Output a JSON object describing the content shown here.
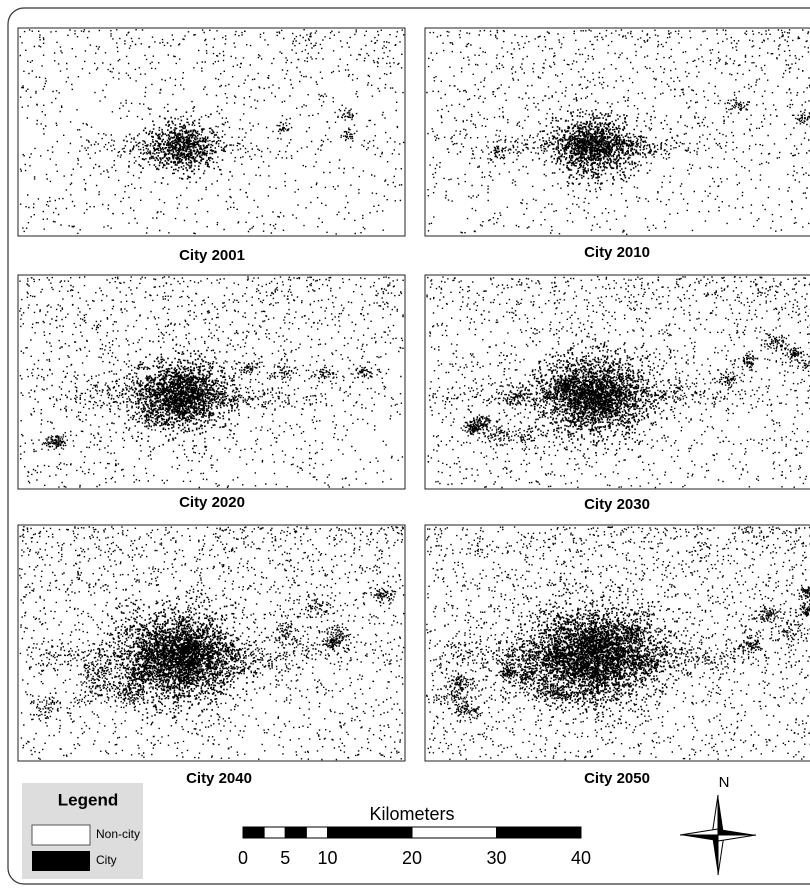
{
  "panels": [
    {
      "caption": "City 2001"
    },
    {
      "caption": "City 2010"
    },
    {
      "caption": "City 2020"
    },
    {
      "caption": "City 2030"
    },
    {
      "caption": "City 2040"
    },
    {
      "caption": "City 2050"
    }
  ],
  "legend": {
    "title": "Legend",
    "items": [
      {
        "label": "Non-city"
      },
      {
        "label": "City"
      }
    ]
  },
  "scale_bar": {
    "title": "Kilometers",
    "ticks": [
      0,
      5,
      10,
      20,
      30,
      40
    ]
  },
  "north_arrow": {
    "label": "N"
  }
}
